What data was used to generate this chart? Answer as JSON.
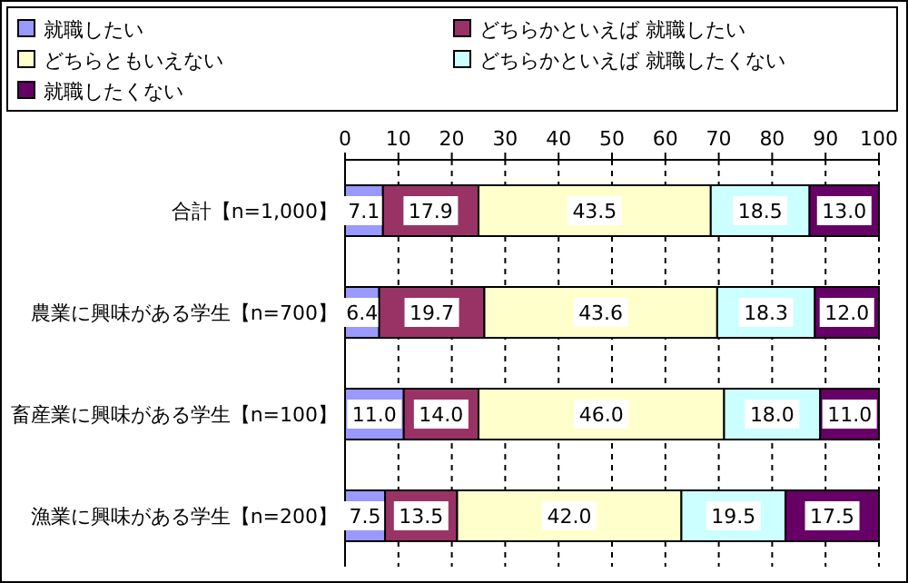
{
  "chart_data": {
    "type": "bar",
    "orientation": "horizontal",
    "stacked": true,
    "categories": [
      "合計【n=1,000】",
      "農業に興味がある学生【n=700】",
      "畜産業に興味がある学生【n=100】",
      "漁業に興味がある学生【n=200】"
    ],
    "series": [
      {
        "name": "就職したい",
        "color": "#9999ff",
        "values": [
          7.1,
          6.4,
          11.0,
          7.5
        ],
        "value_labels": [
          "7.1",
          "6.4",
          "11.0",
          "7.5"
        ]
      },
      {
        "name": "どちらかといえば 就職したい",
        "color": "#993366",
        "values": [
          17.9,
          19.7,
          14.0,
          13.5
        ],
        "value_labels": [
          "17.9",
          "19.7",
          "14.0",
          "13.5"
        ]
      },
      {
        "name": "どちらともいえない",
        "color": "#ffffcc",
        "values": [
          43.5,
          43.6,
          46.0,
          42.0
        ],
        "value_labels": [
          "43.5",
          "43.6",
          "46.0",
          "42.0"
        ]
      },
      {
        "name": "どちらかといえば 就職したくない",
        "color": "#ccffff",
        "values": [
          18.5,
          18.3,
          18.0,
          19.5
        ],
        "value_labels": [
          "18.5",
          "18.3",
          "18.0",
          "19.5"
        ]
      },
      {
        "name": "就職したくない",
        "color": "#660066",
        "values": [
          13.0,
          12.0,
          11.0,
          17.5
        ],
        "value_labels": [
          "13.0",
          "12.0",
          "11.0",
          "17.5"
        ]
      }
    ],
    "xlim": [
      0,
      100
    ],
    "xticks": [
      0,
      10,
      20,
      30,
      40,
      50,
      60,
      70,
      80,
      90,
      100
    ],
    "grid": "x",
    "legend": "top"
  }
}
